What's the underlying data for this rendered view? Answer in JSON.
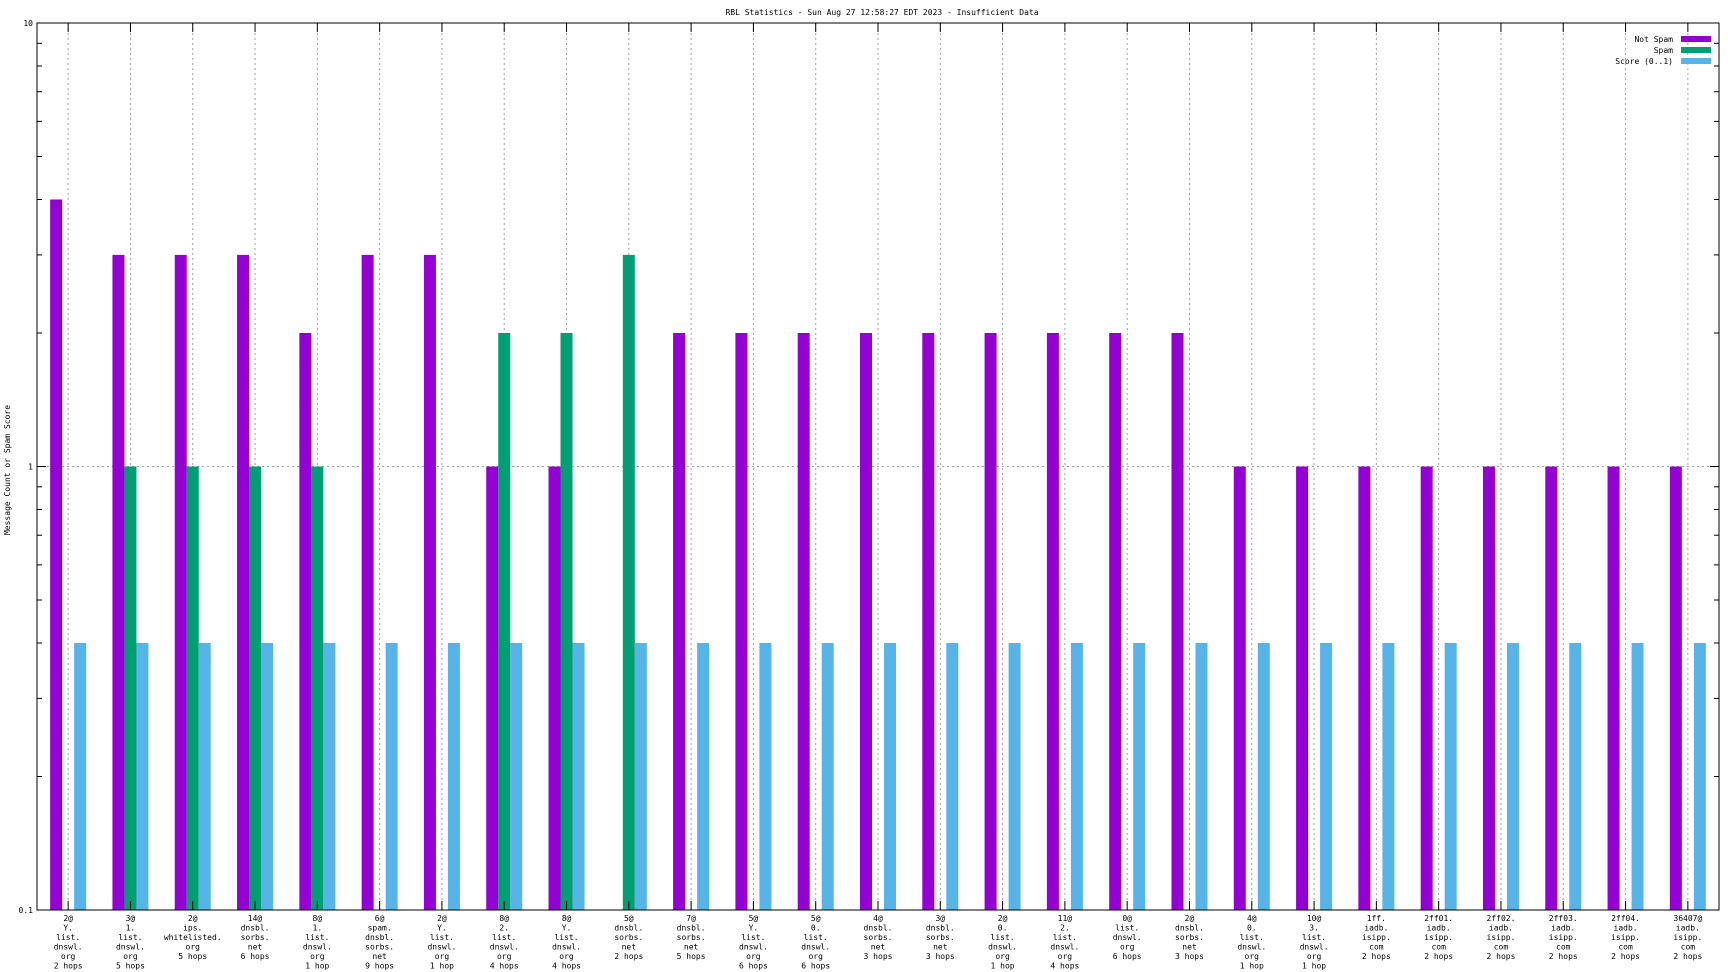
{
  "chart_data": {
    "type": "bar",
    "title": "RBL Statistics - Sun Aug 27 12:58:27 EDT 2023 - Insufficient Data",
    "ylabel": "Message Count or Spam Score",
    "xlabel": "",
    "yscale": "log",
    "ylim": [
      0.1,
      10
    ],
    "yticks": [
      "10",
      "1",
      "0.1"
    ],
    "grid": true,
    "legend_position": "top-right",
    "categories": [
      "2@\nY.\nlist.\ndnswl.\norg\n2 hops",
      "3@\n1.\nlist.\ndnswl.\norg\n5 hops",
      "2@\nips.\nwhitelisted.\norg\n5 hops",
      "14@\ndnsbl.\nsorbs.\nnet\n6 hops",
      "8@\n1.\nlist.\ndnswl.\norg\n1 hop",
      "6@\nspam.\ndnsbl.\nsorbs.\nnet\n9 hops",
      "2@\nY.\nlist.\ndnswl.\norg\n1 hop",
      "8@\n2.\nlist.\ndnswl.\norg\n4 hops",
      "8@\nY.\nlist.\ndnswl.\norg\n4 hops",
      "5@\ndnsbl.\nsorbs.\nnet\n2 hops",
      "7@\ndnsbl.\nsorbs.\nnet\n5 hops",
      "5@\nY.\nlist.\ndnswl.\norg\n6 hops",
      "5@\n0.\nlist.\ndnswl.\norg\n6 hops",
      "4@\ndnsbl.\nsorbs.\nnet\n3 hops",
      "3@\ndnsbl.\nsorbs.\nnet\n3 hops",
      "2@\n0.\nlist.\ndnswl.\norg\n1 hop",
      "11@\n2.\nlist.\ndnswl.\norg\n4 hops",
      "0@\nlist.\ndnswl.\norg\n6 hops",
      "2@\ndnsbl.\nsorbs.\nnet\n3 hops",
      "4@\n0.\nlist.\ndnswl.\norg\n1 hop",
      "10@\n3.\nlist.\ndnswl.\norg\n1 hop",
      "1ff.\niadb.\nisipp.\ncom\n2 hops",
      "2ff01.\niadb.\nisipp.\ncom\n2 hops",
      "2ff02.\niadb.\nisipp.\ncom\n2 hops",
      "2ff03.\niadb.\nisipp.\ncom\n2 hops",
      "2ff04.\niadb.\nisipp.\ncom\n2 hops",
      "36407@\niadb.\nisipp.\ncom\n2 hops"
    ],
    "series": [
      {
        "name": "Not Spam",
        "color": "#9400d3",
        "values": [
          4,
          3,
          3,
          3,
          2,
          3,
          3,
          1,
          1,
          null,
          2,
          2,
          2,
          2,
          2,
          2,
          2,
          2,
          2,
          1,
          1,
          1,
          1,
          1,
          1,
          1,
          1
        ]
      },
      {
        "name": "Spam",
        "color": "#009e73",
        "values": [
          null,
          1,
          1,
          1,
          1,
          null,
          null,
          2,
          2,
          3,
          null,
          null,
          null,
          null,
          null,
          null,
          null,
          null,
          null,
          null,
          null,
          null,
          null,
          null,
          null,
          null,
          null
        ]
      },
      {
        "name": "Score (0..1)",
        "color": "#56b4e9",
        "values": [
          0.4,
          0.4,
          0.4,
          0.4,
          0.4,
          0.4,
          0.4,
          0.4,
          0.4,
          0.4,
          0.4,
          0.4,
          0.4,
          0.4,
          0.4,
          0.4,
          0.4,
          0.4,
          0.4,
          0.4,
          0.4,
          0.4,
          0.4,
          0.4,
          0.4,
          0.4,
          0.4
        ]
      }
    ]
  }
}
